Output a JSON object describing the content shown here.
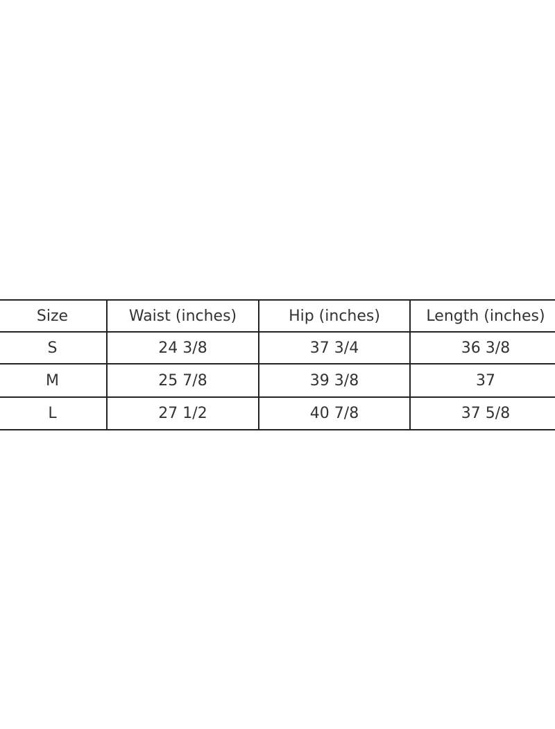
{
  "table": {
    "headers": [
      "Size",
      "Waist (inches)",
      "Hip (inches)",
      "Length (inches)"
    ],
    "rows": [
      [
        "S",
        "24 3/8",
        "37 3/4",
        "36 3/8"
      ],
      [
        "M",
        "25 7/8",
        "39 3/8",
        "37"
      ],
      [
        "L",
        "27 1/2",
        "40 7/8",
        "37 5/8"
      ]
    ]
  }
}
